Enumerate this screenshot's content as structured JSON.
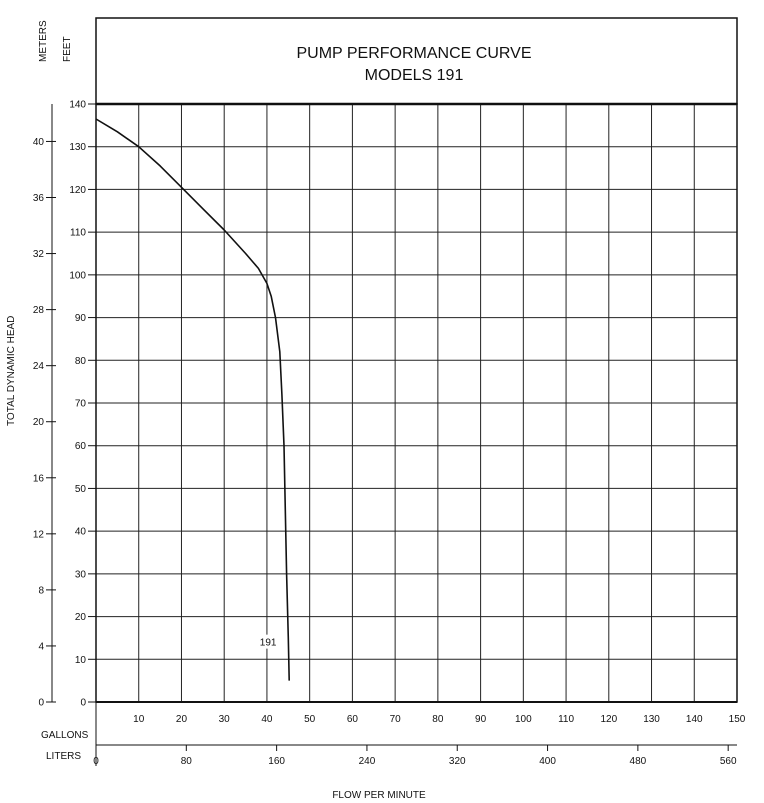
{
  "chart_data": {
    "type": "line",
    "title": "PUMP PERFORMANCE CURVE",
    "subtitle": "MODELS 191",
    "ylabel": "TOTAL DYNAMIC HEAD",
    "xlabel": "FLOW PER MINUTE",
    "y_unit_meters": "METERS",
    "y_unit_feet": "FEET",
    "x_unit_gallons": "GALLONS",
    "x_unit_liters": "LITERS",
    "xlim": [
      0,
      150
    ],
    "ylim": [
      0,
      140
    ],
    "grid": true,
    "gallon_ticks": [
      "10",
      "20",
      "30",
      "40",
      "50",
      "60",
      "70",
      "80",
      "90",
      "100",
      "110",
      "120",
      "130",
      "140",
      "150"
    ],
    "liter_ticks": [
      "0",
      "80",
      "160",
      "240",
      "320",
      "400",
      "480",
      "560"
    ],
    "feet_ticks": [
      "0",
      "10",
      "20",
      "30",
      "40",
      "50",
      "60",
      "70",
      "80",
      "90",
      "100",
      "110",
      "120",
      "130",
      "140"
    ],
    "meter_ticks": [
      "4",
      "8",
      "12",
      "16",
      "20",
      "24",
      "28",
      "32",
      "36",
      "40"
    ],
    "series": [
      {
        "name": "191",
        "x": [
          0,
          5,
          10,
          15,
          20,
          25,
          30,
          35,
          38,
          40,
          41,
          42,
          43,
          43.5,
          44,
          44.3,
          44.6,
          45,
          45.2
        ],
        "y": [
          136.5,
          133.5,
          130,
          125.5,
          120.5,
          115.5,
          110.5,
          105,
          101.5,
          98,
          95,
          90,
          82,
          72,
          60,
          45,
          30,
          15,
          5
        ]
      }
    ]
  }
}
